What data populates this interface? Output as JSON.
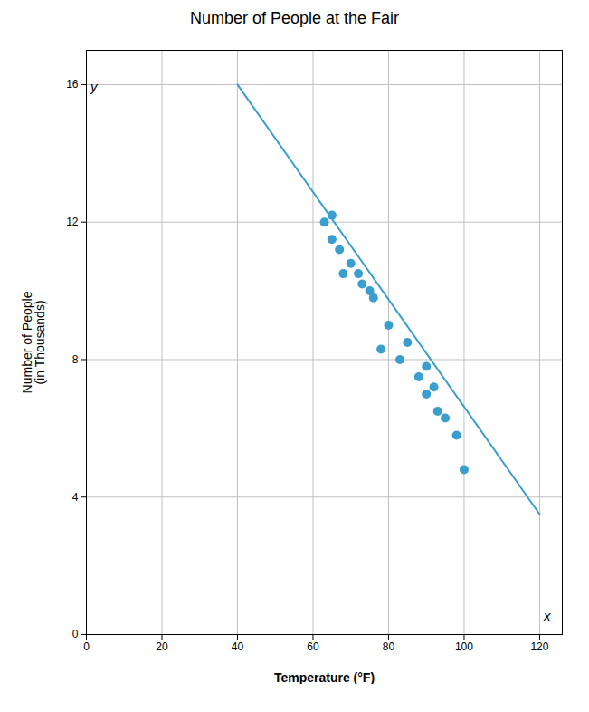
{
  "chart_data": {
    "type": "scatter",
    "title": "Number of People at the Fair",
    "xlabel": "Temperature (°F)",
    "ylabel": "Number of People\n(in Thousands)",
    "series": [
      {
        "type": "scatter",
        "color": "#3a9ecf",
        "x": [
          63,
          65,
          65,
          67,
          68,
          70,
          72,
          73,
          75,
          76,
          78,
          80,
          83,
          85,
          88,
          90,
          90,
          92,
          93,
          95,
          98,
          100
        ],
        "values": [
          12.0,
          11.5,
          12.2,
          11.2,
          10.5,
          10.8,
          10.5,
          10.2,
          10.0,
          9.8,
          8.3,
          9.0,
          8.0,
          8.5,
          7.5,
          7.8,
          7.0,
          7.2,
          6.5,
          6.3,
          5.8,
          4.8
        ]
      },
      {
        "type": "line",
        "color": "#3a9ecf",
        "x": [
          40,
          120
        ],
        "values": [
          16.0,
          3.5
        ]
      }
    ],
    "annotations": [
      {
        "text": "x",
        "x": 122,
        "y": 0.4
      },
      {
        "text": "y",
        "x": 2,
        "y": 15.8
      }
    ],
    "xlim": [
      0,
      126
    ],
    "ylim": [
      0,
      17
    ],
    "xticks": [
      0,
      20,
      40,
      60,
      80,
      100,
      120
    ],
    "yticks": [
      0,
      4,
      8,
      12,
      16
    ],
    "grid": true
  }
}
